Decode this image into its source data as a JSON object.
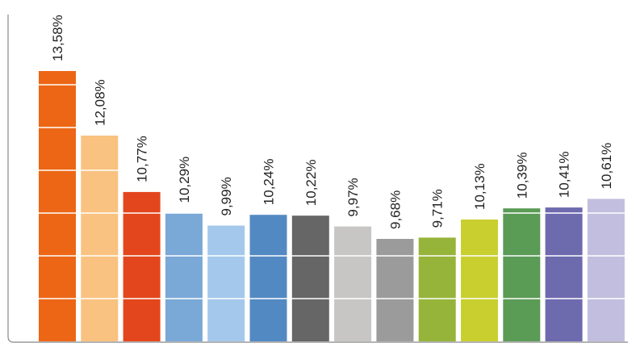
{
  "chart_data": {
    "type": "bar",
    "title": "",
    "xlabel": "",
    "ylabel": "",
    "categories": [
      "",
      "",
      "",
      "",
      "",
      "",
      "",
      "",
      "",
      "",
      "",
      "",
      "",
      ""
    ],
    "values": [
      13.58,
      12.08,
      10.77,
      10.29,
      9.99,
      10.24,
      10.22,
      9.97,
      9.68,
      9.71,
      10.13,
      10.39,
      10.41,
      10.61
    ],
    "labels": [
      "13,58%",
      "12,08%",
      "10,77%",
      "10,29%",
      "9,99%",
      "10,24%",
      "10,22%",
      "9,97%",
      "9,68%",
      "9,71%",
      "10,13%",
      "10,39%",
      "10,41%",
      "10,61%"
    ],
    "colors": [
      "#ec6615",
      "#f9c280",
      "#e3461c",
      "#7aa8d7",
      "#a4c8ec",
      "#5389c3",
      "#666666",
      "#c7c6c4",
      "#9b9b9b",
      "#97b43a",
      "#c9cf2f",
      "#5a9b55",
      "#6e6aae",
      "#c1bedf"
    ],
    "ylim": [
      7.3,
      14
    ],
    "grid": true,
    "legend": "none"
  }
}
